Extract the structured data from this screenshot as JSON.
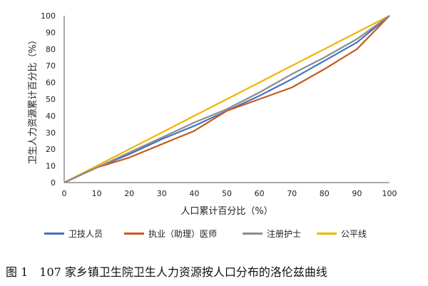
{
  "caption": "图 1　107 家乡镇卫生院卫生人力资源按人口分布的洛伦兹曲线",
  "chart_data": {
    "type": "line",
    "xlabel": "人口累计百分比（%）",
    "ylabel": "卫生人力资源累计百分比（%）",
    "xlim": [
      0,
      100
    ],
    "ylim": [
      0,
      100
    ],
    "xticks": [
      0,
      10,
      20,
      30,
      40,
      50,
      60,
      70,
      80,
      90,
      100
    ],
    "yticks": [
      0,
      10,
      20,
      30,
      40,
      50,
      60,
      70,
      80,
      90,
      100
    ],
    "grid": false,
    "legend_position": "bottom",
    "x": [
      0,
      10,
      20,
      30,
      40,
      50,
      60,
      70,
      80,
      90,
      100
    ],
    "series": [
      {
        "name": "卫技人员",
        "color": "#4472C4",
        "values": [
          0,
          9,
          17,
          26,
          34,
          43,
          52,
          62,
          73,
          84,
          100
        ]
      },
      {
        "name": "执业（助理）医师",
        "color": "#C65A1E",
        "values": [
          0,
          9,
          15,
          23,
          31,
          43,
          50,
          57,
          68,
          80,
          100
        ]
      },
      {
        "name": "注册护士",
        "color": "#8C8C8C",
        "values": [
          0,
          9,
          18,
          27,
          36,
          44,
          54,
          65,
          75,
          86,
          100
        ]
      },
      {
        "name": "公平线",
        "color": "#F0B400",
        "values": [
          0,
          10,
          20,
          30,
          40,
          50,
          60,
          70,
          80,
          90,
          100
        ]
      }
    ]
  }
}
